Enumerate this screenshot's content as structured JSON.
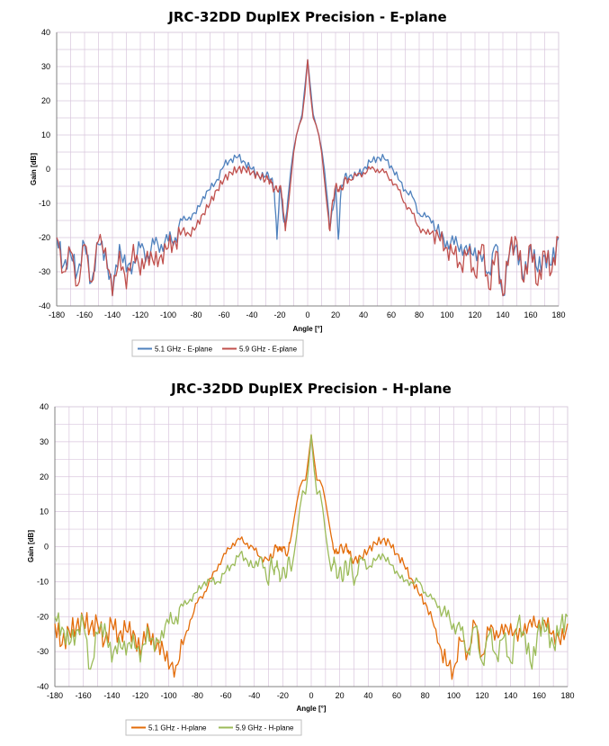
{
  "chart_data": [
    {
      "type": "line",
      "title": "JRC-32DD DuplEX Precision - E-plane",
      "xlabel": "Angle [°]",
      "ylabel": "Gain [dB]",
      "xlim": [
        -180,
        180
      ],
      "ylim": [
        -40,
        40
      ],
      "x_ticks": [
        -180,
        -160,
        -140,
        -120,
        -100,
        -80,
        -60,
        -40,
        -20,
        0,
        20,
        40,
        60,
        80,
        100,
        120,
        140,
        160,
        180
      ],
      "y_ticks": [
        40,
        30,
        20,
        10,
        0,
        -10,
        -20,
        -30,
        -40
      ],
      "grid": true,
      "legend": "bottom-left",
      "series": [
        {
          "name": "5.1 GHz - E-plane",
          "color": "#4f81bd",
          "x": [
            0,
            2,
            4,
            6,
            8,
            10,
            12,
            14,
            16,
            18,
            20,
            22,
            24,
            26,
            28,
            30,
            35,
            40,
            45,
            50,
            55,
            60,
            65,
            70,
            75,
            80,
            85,
            90,
            95,
            100,
            105,
            110,
            115,
            120,
            125,
            130,
            135,
            140,
            145,
            150,
            155,
            160,
            165,
            170,
            175,
            180
          ],
          "y": [
            32,
            24,
            16,
            13,
            10,
            6,
            0,
            -8,
            -17,
            -12,
            -5,
            -20.5,
            -6,
            -3,
            -2,
            -2,
            -2,
            0,
            2,
            3.5,
            3,
            1,
            -3,
            -6,
            -8,
            -13,
            -14,
            -15,
            -20,
            -21,
            -22,
            -22,
            -25,
            -23,
            -27,
            -30,
            -22,
            -37,
            -24,
            -22,
            -33,
            -22,
            -30,
            -25,
            -28,
            -20
          ]
        },
        {
          "name": "5.9 GHz - E-plane",
          "color": "#c0504d",
          "x": [
            0,
            2,
            4,
            6,
            8,
            10,
            12,
            14,
            16,
            18,
            20,
            22,
            24,
            26,
            28,
            30,
            35,
            40,
            45,
            50,
            55,
            60,
            65,
            70,
            75,
            80,
            85,
            90,
            95,
            100,
            105,
            110,
            115,
            120,
            125,
            130,
            135,
            140,
            145,
            150,
            155,
            160,
            165,
            170,
            175,
            180
          ],
          "y": [
            32,
            22,
            15,
            13,
            10,
            5,
            -3,
            -11,
            -18,
            -9,
            -5,
            -6,
            -6,
            -4,
            -3,
            -3,
            -2,
            -1,
            0,
            0,
            -1,
            -3,
            -6,
            -10,
            -13,
            -17,
            -19,
            -18,
            -21,
            -23,
            -25,
            -28,
            -24,
            -31,
            -22,
            -35,
            -24,
            -37,
            -23,
            -21,
            -33,
            -22,
            -34,
            -24,
            -30,
            -20
          ]
        }
      ]
    },
    {
      "type": "line",
      "title": "JRC-32DD DuplEX Precision - H-plane",
      "xlabel": "Angle [°]",
      "ylabel": "Gain [dB]",
      "xlim": [
        -180,
        180
      ],
      "ylim": [
        -40,
        40
      ],
      "x_ticks": [
        -180,
        -160,
        -140,
        -120,
        -100,
        -80,
        -60,
        -40,
        -20,
        0,
        20,
        40,
        60,
        80,
        100,
        120,
        140,
        160,
        180
      ],
      "y_ticks": [
        40,
        30,
        20,
        10,
        0,
        -10,
        -20,
        -30,
        -40
      ],
      "grid": true,
      "legend": "bottom-left",
      "series": [
        {
          "name": "5.1 GHz - H-plane",
          "color": "#e36c09",
          "x": [
            0,
            2,
            4,
            6,
            8,
            10,
            12,
            14,
            16,
            18,
            20,
            22,
            24,
            26,
            28,
            30,
            35,
            40,
            45,
            50,
            55,
            60,
            65,
            70,
            75,
            80,
            85,
            90,
            95,
            100,
            105,
            110,
            115,
            120,
            125,
            130,
            135,
            140,
            145,
            150,
            155,
            160,
            165,
            170,
            175,
            180
          ],
          "y": [
            32,
            25,
            19,
            19,
            17,
            13,
            8,
            3,
            -1,
            -2,
            0,
            -1,
            0,
            -1,
            -3,
            -4,
            -3,
            -1,
            1,
            2,
            1,
            -2,
            -5,
            -9,
            -13,
            -16,
            -21,
            -28,
            -34,
            -35,
            -27,
            -30,
            -22,
            -31,
            -24,
            -24,
            -25,
            -22,
            -27,
            -22,
            -23,
            -21,
            -23,
            -24,
            -28,
            -22
          ]
        },
        {
          "name": "5.9 GHz - H-plane",
          "color": "#9bbb59",
          "x": [
            0,
            2,
            4,
            6,
            8,
            10,
            12,
            14,
            16,
            18,
            20,
            22,
            24,
            26,
            28,
            30,
            35,
            40,
            45,
            50,
            55,
            60,
            65,
            70,
            75,
            80,
            85,
            90,
            95,
            100,
            105,
            110,
            115,
            120,
            125,
            130,
            135,
            140,
            145,
            150,
            155,
            160,
            165,
            170,
            175,
            180
          ],
          "y": [
            32,
            22,
            15,
            16,
            11,
            4,
            -2,
            -7,
            -3,
            -9,
            -6,
            -10,
            -4,
            -8,
            -3,
            -11,
            -3,
            -6,
            -4,
            -2,
            -5,
            -7,
            -10,
            -10,
            -10,
            -13,
            -15,
            -17,
            -20,
            -22,
            -24,
            -30,
            -23,
            -33,
            -25,
            -31,
            -26,
            -33,
            -22,
            -25,
            -35,
            -22,
            -24,
            -28,
            -23,
            -20
          ]
        }
      ]
    }
  ]
}
